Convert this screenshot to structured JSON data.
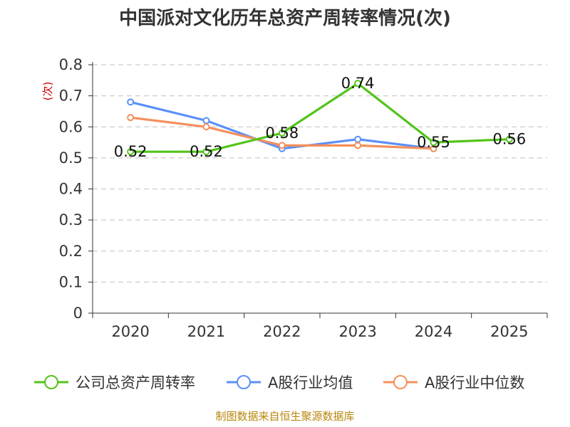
{
  "chart_data": {
    "type": "line",
    "title": "中国派对文化历年总资产周转率情况(次)",
    "ylabel": "(次)",
    "xlabel": "",
    "categories": [
      "2020",
      "2021",
      "2022",
      "2023",
      "2024",
      "2025"
    ],
    "ylim": [
      0,
      0.8
    ],
    "yticks": [
      "0",
      "0.1",
      "0.2",
      "0.3",
      "0.4",
      "0.5",
      "0.6",
      "0.7",
      "0.8"
    ],
    "yticks_values": [
      0,
      0.1,
      0.2,
      0.3,
      0.4,
      0.5,
      0.6,
      0.7,
      0.8
    ],
    "grid": true,
    "legend_position": "bottom",
    "series": [
      {
        "name": "公司总资产周转率",
        "color": "#52c41a",
        "values": [
          0.52,
          0.52,
          0.58,
          0.74,
          0.55,
          0.56
        ],
        "labels": [
          "0.52",
          "0.52",
          "0.58",
          "0.74",
          "0.55",
          "0.56"
        ]
      },
      {
        "name": "A股行业均值",
        "color": "#5b8ff9",
        "values": [
          0.68,
          0.62,
          0.53,
          0.56,
          0.53,
          null
        ]
      },
      {
        "name": "A股行业中位数",
        "color": "#f4905a",
        "values": [
          0.63,
          0.6,
          0.54,
          0.54,
          0.53,
          null
        ]
      }
    ],
    "source": "制图数据来自恒生聚源数据库"
  }
}
